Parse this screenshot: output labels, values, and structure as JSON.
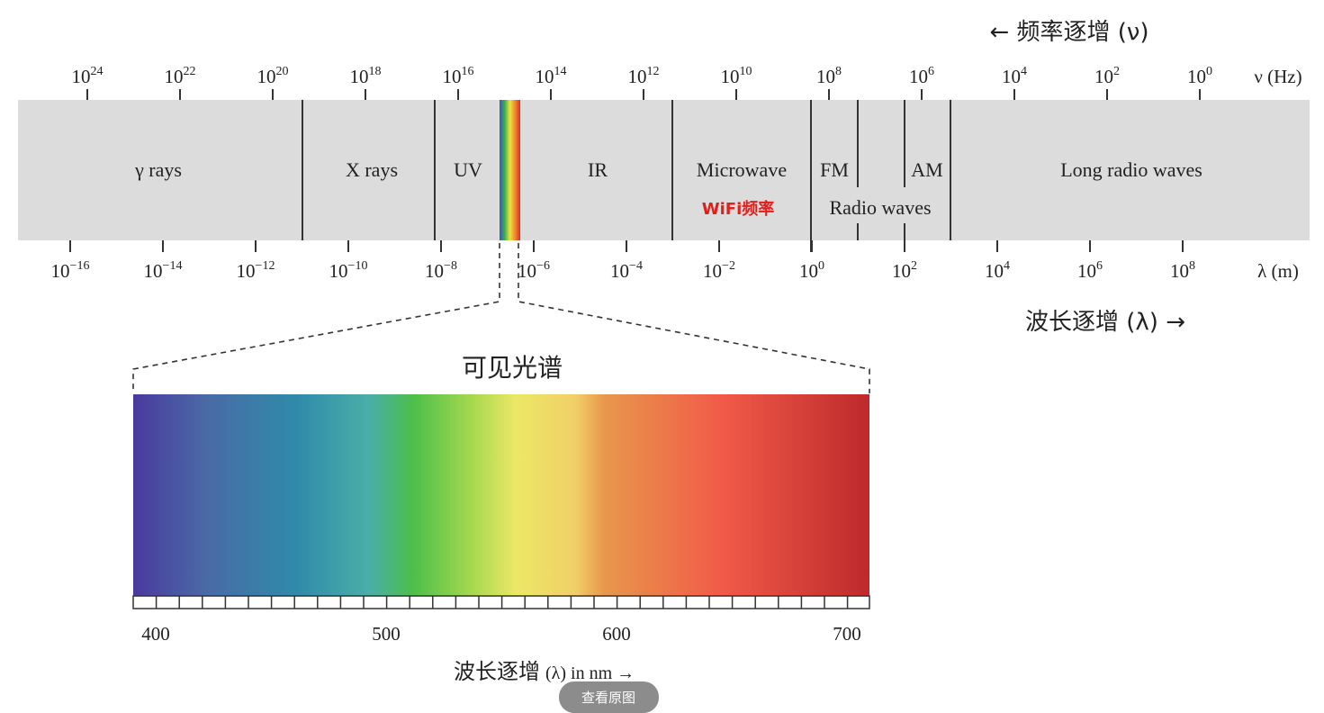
{
  "header": {
    "frequency_direction": "← 频率逐增 (ν)",
    "wavelength_direction": "波长逐增 (λ) →"
  },
  "frequency_axis": {
    "unit": "ν (Hz)",
    "ticks": [
      {
        "base": "10",
        "exp": "24"
      },
      {
        "base": "10",
        "exp": "22"
      },
      {
        "base": "10",
        "exp": "20"
      },
      {
        "base": "10",
        "exp": "18"
      },
      {
        "base": "10",
        "exp": "16"
      },
      {
        "base": "10",
        "exp": "14"
      },
      {
        "base": "10",
        "exp": "12"
      },
      {
        "base": "10",
        "exp": "10"
      },
      {
        "base": "10",
        "exp": "8"
      },
      {
        "base": "10",
        "exp": "6"
      },
      {
        "base": "10",
        "exp": "4"
      },
      {
        "base": "10",
        "exp": "2"
      },
      {
        "base": "10",
        "exp": "0"
      }
    ]
  },
  "wavelength_axis": {
    "unit": "λ (m)",
    "ticks": [
      {
        "base": "10",
        "exp": "−16"
      },
      {
        "base": "10",
        "exp": "−14"
      },
      {
        "base": "10",
        "exp": "−12"
      },
      {
        "base": "10",
        "exp": "−10"
      },
      {
        "base": "10",
        "exp": "−8"
      },
      {
        "base": "10",
        "exp": "−6"
      },
      {
        "base": "10",
        "exp": "−4"
      },
      {
        "base": "10",
        "exp": "−2"
      },
      {
        "base": "10",
        "exp": "0"
      },
      {
        "base": "10",
        "exp": "2"
      },
      {
        "base": "10",
        "exp": "4"
      },
      {
        "base": "10",
        "exp": "6"
      },
      {
        "base": "10",
        "exp": "8"
      }
    ]
  },
  "bands": {
    "gamma": "γ rays",
    "xray": "X rays",
    "uv": "UV",
    "ir": "IR",
    "microwave": "Microwave",
    "fm": "FM",
    "am": "AM",
    "long": "Long radio waves",
    "radio": "Radio waves",
    "wifi": "WiFi频率"
  },
  "visible": {
    "title": "可见光谱",
    "scale": [
      400,
      500,
      600,
      700
    ],
    "axis_label": "波长逐增",
    "axis_unit": "(λ) in nm →"
  },
  "button": "查看原图"
}
